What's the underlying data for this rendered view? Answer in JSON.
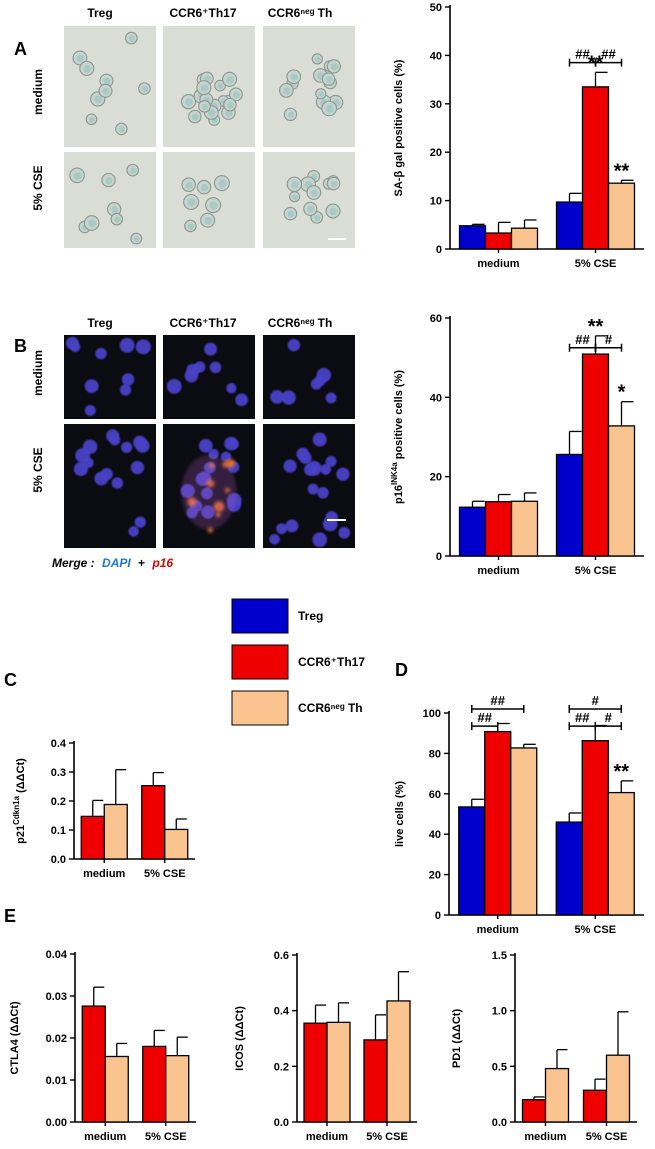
{
  "colors": {
    "Treg": "#0000cc",
    "CCR6+Th17": "#ee0000",
    "CCR6neg Th": "#f9c48f",
    "dapi": "#1e78d2",
    "p16": "#e00000",
    "micro_bright": "#d9ddd5",
    "fluor_bg": "#0b0b12"
  },
  "figure": {
    "panel_letters": {
      "A": "A",
      "B": "B",
      "C": "C",
      "D": "D",
      "E": "E"
    },
    "micrograph_A": {
      "columns": [
        "Treg",
        "CCR6⁺Th17",
        "CCR6ⁿᵉᵍ Th"
      ],
      "rows": [
        "medium",
        "5% CSE"
      ]
    },
    "micrograph_B": {
      "columns": [
        "Treg",
        "CCR6⁺Th17",
        "CCR6ⁿᵉᵍ Th"
      ],
      "rows": [
        "medium",
        "5% CSE"
      ],
      "merge_label": "Merge :",
      "dapi_label": "DAPI",
      "plus": "+",
      "p16_label": "p16"
    },
    "legend": [
      {
        "name": "Treg",
        "label": "Treg"
      },
      {
        "name": "CCR6+Th17",
        "label": "CCR6⁺Th17"
      },
      {
        "name": "CCR6neg Th",
        "label": "CCR6ⁿᵉᵍ Th"
      }
    ]
  },
  "chart_data": [
    {
      "id": "A",
      "type": "bar",
      "ylabel": "SA-β gal positive cells (%)",
      "categories": [
        "medium",
        "5% CSE"
      ],
      "ylim": [
        0,
        50
      ],
      "yticks": [
        0,
        10,
        20,
        30,
        40,
        50
      ],
      "series": [
        {
          "name": "Treg",
          "values": [
            4.8,
            9.7
          ],
          "errors": [
            0.3,
            1.8
          ]
        },
        {
          "name": "CCR6+Th17",
          "values": [
            3.3,
            33.5
          ],
          "errors": [
            2.2,
            3.0
          ]
        },
        {
          "name": "CCR6neg Th",
          "values": [
            4.3,
            13.6
          ],
          "errors": [
            1.7,
            0.6
          ]
        }
      ],
      "annotations": [
        {
          "text": "**",
          "category": 1,
          "series": 1,
          "role": "star"
        },
        {
          "text": "**",
          "category": 1,
          "series": 2,
          "role": "star"
        },
        {
          "text": "##",
          "category": 1,
          "from": 0,
          "to": 1,
          "y": 38.5,
          "role": "bracket"
        },
        {
          "text": "##",
          "category": 1,
          "from": 1,
          "to": 2,
          "y": 38.5,
          "role": "bracket"
        }
      ]
    },
    {
      "id": "B",
      "type": "bar",
      "ylabel": "p16 INK4a positive cells (%)",
      "ylabel_main": "p16",
      "ylabel_sup": "INK4a",
      "ylabel_rest": " positive cells (%)",
      "categories": [
        "medium",
        "5% CSE"
      ],
      "ylim": [
        0,
        60
      ],
      "yticks": [
        0,
        20,
        40,
        60
      ],
      "series": [
        {
          "name": "Treg",
          "values": [
            12.3,
            25.6
          ],
          "errors": [
            1.5,
            5.8
          ]
        },
        {
          "name": "CCR6+Th17",
          "values": [
            13.7,
            50.9
          ],
          "errors": [
            1.8,
            4.6
          ]
        },
        {
          "name": "CCR6neg Th",
          "values": [
            13.8,
            32.8
          ],
          "errors": [
            2.1,
            6.1
          ]
        }
      ],
      "annotations": [
        {
          "text": "**",
          "category": 1,
          "series": 1,
          "role": "star"
        },
        {
          "text": "*",
          "category": 1,
          "series": 2,
          "role": "star"
        },
        {
          "text": "##",
          "category": 1,
          "from": 0,
          "to": 1,
          "y": 52.5,
          "role": "bracket"
        },
        {
          "text": "#",
          "category": 1,
          "from": 1,
          "to": 2,
          "y": 52.5,
          "role": "bracket"
        }
      ]
    },
    {
      "id": "C",
      "type": "bar",
      "ylabel": "p21 Cdkn1a (ΔΔCt)",
      "ylabel_main": "p21",
      "ylabel_sup": "Cdkn1a",
      "ylabel_rest": " (ΔΔCt)",
      "categories": [
        "medium",
        "5% CSE"
      ],
      "ylim": [
        0,
        0.4
      ],
      "yticks": [
        0.0,
        0.1,
        0.2,
        0.3,
        0.4
      ],
      "ytick_labels": [
        "0.0",
        "0.1",
        "0.2",
        "0.3",
        "0.4"
      ],
      "series": [
        {
          "name": "CCR6+Th17",
          "values": [
            0.147,
            0.253
          ],
          "errors": [
            0.055,
            0.045
          ]
        },
        {
          "name": "CCR6neg Th",
          "values": [
            0.188,
            0.102
          ],
          "errors": [
            0.12,
            0.036
          ]
        }
      ],
      "annotations": []
    },
    {
      "id": "D",
      "type": "bar",
      "ylabel": "live cells (%)",
      "categories": [
        "medium",
        "5% CSE"
      ],
      "ylim": [
        0,
        100
      ],
      "yticks": [
        0,
        20,
        40,
        60,
        80,
        100
      ],
      "series": [
        {
          "name": "Treg",
          "values": [
            53.5,
            46.0
          ],
          "errors": [
            3.8,
            4.5
          ]
        },
        {
          "name": "CCR6+Th17",
          "values": [
            90.8,
            86.3
          ],
          "errors": [
            4.0,
            7.5
          ]
        },
        {
          "name": "CCR6neg Th",
          "values": [
            82.7,
            60.6
          ],
          "errors": [
            1.8,
            5.8
          ]
        }
      ],
      "annotations": [
        {
          "text": "##",
          "category": 0,
          "from": 0,
          "to": 1,
          "y": 93.5,
          "role": "bracket"
        },
        {
          "text": "##",
          "category": 0,
          "from": 0,
          "to": 2,
          "y": 102,
          "role": "bracket"
        },
        {
          "text": "##",
          "category": 1,
          "from": 0,
          "to": 1,
          "y": 93.5,
          "role": "bracket"
        },
        {
          "text": "#",
          "category": 1,
          "from": 1,
          "to": 2,
          "y": 93.5,
          "role": "bracket"
        },
        {
          "text": "#",
          "category": 1,
          "from": 0,
          "to": 2,
          "y": 102,
          "role": "bracket"
        },
        {
          "text": "**",
          "category": 1,
          "series": 2,
          "role": "star"
        }
      ]
    },
    {
      "id": "E1",
      "type": "bar",
      "ylabel": "CTLA4 (ΔΔCt)",
      "categories": [
        "medium",
        "5% CSE"
      ],
      "ylim": [
        0,
        0.04
      ],
      "yticks": [
        0,
        0.01,
        0.02,
        0.03,
        0.04
      ],
      "ytick_labels": [
        "0.00",
        "0.01",
        "0.02",
        "0.03",
        "0.04"
      ],
      "series": [
        {
          "name": "CCR6+Th17",
          "values": [
            0.0276,
            0.018
          ],
          "errors": [
            0.0045,
            0.0038
          ]
        },
        {
          "name": "CCR6neg Th",
          "values": [
            0.0156,
            0.0158
          ],
          "errors": [
            0.0031,
            0.0044
          ]
        }
      ],
      "annotations": []
    },
    {
      "id": "E2",
      "type": "bar",
      "ylabel": "ICOS (ΔΔCt)",
      "categories": [
        "medium",
        "5% CSE"
      ],
      "ylim": [
        0,
        0.6
      ],
      "yticks": [
        0,
        0.2,
        0.4,
        0.6
      ],
      "ytick_labels": [
        "0.0",
        "0.2",
        "0.4",
        "0.6"
      ],
      "series": [
        {
          "name": "CCR6+Th17",
          "values": [
            0.355,
            0.295
          ],
          "errors": [
            0.065,
            0.09
          ]
        },
        {
          "name": "CCR6neg Th",
          "values": [
            0.358,
            0.435
          ],
          "errors": [
            0.07,
            0.105
          ]
        }
      ],
      "annotations": []
    },
    {
      "id": "E3",
      "type": "bar",
      "ylabel": "PD1 (ΔΔCt)",
      "categories": [
        "medium",
        "5% CSE"
      ],
      "ylim": [
        0,
        1.5
      ],
      "yticks": [
        0,
        0.5,
        1.0,
        1.5
      ],
      "ytick_labels": [
        "0.0",
        "0.5",
        "1.0",
        "1.5"
      ],
      "series": [
        {
          "name": "CCR6+Th17",
          "values": [
            0.2,
            0.285
          ],
          "errors": [
            0.025,
            0.1
          ]
        },
        {
          "name": "CCR6neg Th",
          "values": [
            0.48,
            0.6
          ],
          "errors": [
            0.17,
            0.39
          ]
        }
      ],
      "annotations": []
    }
  ]
}
